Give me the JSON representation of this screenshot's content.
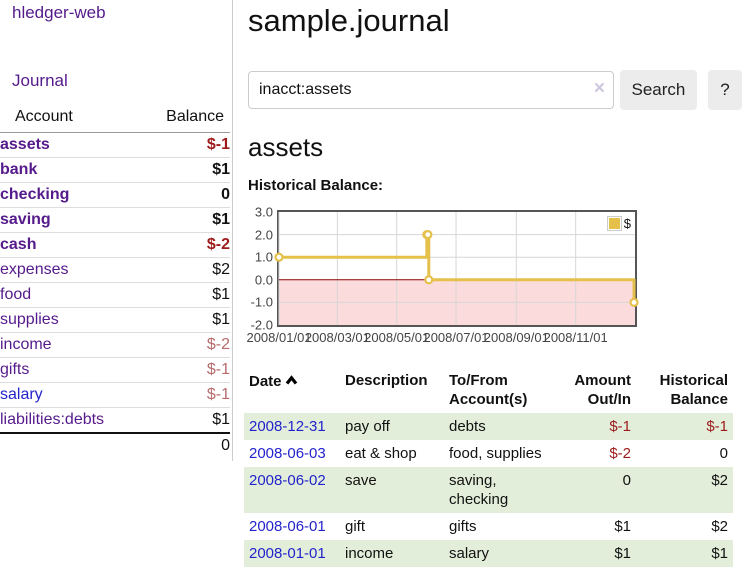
{
  "app": {
    "title": "hledger-web"
  },
  "sidebar": {
    "nav": {
      "journal": "Journal"
    },
    "accounts_table": {
      "headers": {
        "account": "Account",
        "balance": "Balance"
      },
      "rows": [
        {
          "name": "assets",
          "balance": "$-1"
        },
        {
          "name": "bank",
          "balance": "$1"
        },
        {
          "name": "checking",
          "balance": "0"
        },
        {
          "name": "saving",
          "balance": "$1"
        },
        {
          "name": "cash",
          "balance": "$-2"
        },
        {
          "name": "expenses",
          "balance": "$2"
        },
        {
          "name": "food",
          "balance": "$1"
        },
        {
          "name": "supplies",
          "balance": "$1"
        },
        {
          "name": "income",
          "balance": "$-2"
        },
        {
          "name": "gifts",
          "balance": "$-1"
        },
        {
          "name": "salary",
          "balance": "$-1"
        },
        {
          "name": "liabilities:debts",
          "balance": "$1"
        }
      ],
      "total": "0"
    }
  },
  "main": {
    "title": "sample.journal",
    "search": {
      "value": "inacct:assets",
      "clear_icon": "×",
      "button": "Search",
      "help_button": "?"
    },
    "account_heading": "assets",
    "chart_label": "Historical Balance:"
  },
  "register_table": {
    "headers": {
      "date": "Date",
      "description": "Description",
      "accounts": "To/From Account(s)",
      "amount": "Amount Out/In",
      "balance": "Historical Balance"
    },
    "rows": [
      {
        "date": "2008-12-31",
        "description": "pay off",
        "accounts": "debts",
        "amount": "$-1",
        "balance": "$-1"
      },
      {
        "date": "2008-06-03",
        "description": "eat & shop",
        "accounts": "food, supplies",
        "amount": "$-2",
        "balance": "0"
      },
      {
        "date": "2008-06-02",
        "description": "save",
        "accounts": "saving, checking",
        "amount": "0",
        "balance": "$2"
      },
      {
        "date": "2008-06-01",
        "description": "gift",
        "accounts": "gifts",
        "amount": "$1",
        "balance": "$2"
      },
      {
        "date": "2008-01-01",
        "description": "income",
        "accounts": "salary",
        "amount": "$1",
        "balance": "$1"
      }
    ]
  },
  "chart_data": {
    "type": "line",
    "title": "Historical Balance:",
    "step": true,
    "series": [
      {
        "name": "$",
        "color": "#e5c04a",
        "points": [
          [
            "2008-01-01",
            1
          ],
          [
            "2008-06-01",
            2
          ],
          [
            "2008-06-02",
            2
          ],
          [
            "2008-06-03",
            0
          ],
          [
            "2008-12-31",
            -1
          ]
        ]
      }
    ],
    "x_range": [
      "2008-01-01",
      "2009-01-01"
    ],
    "ylim": [
      -2,
      3
    ],
    "y_ticks": [
      {
        "v": 3,
        "label": "3.0"
      },
      {
        "v": 2,
        "label": "2.0"
      },
      {
        "v": 1,
        "label": "1.0"
      },
      {
        "v": 0,
        "label": "0.0"
      },
      {
        "v": -1,
        "label": "-1.0"
      },
      {
        "v": -2,
        "label": "-2.0"
      }
    ],
    "x_ticks": [
      {
        "date": "2008-01-01",
        "label": "2008/01/01"
      },
      {
        "date": "2008-03-01",
        "label": "2008/03/01"
      },
      {
        "date": "2008-05-01",
        "label": "2008/05/01"
      },
      {
        "date": "2008-07-01",
        "label": "2008/07/01"
      },
      {
        "date": "2008-09-01",
        "label": "2008/09/01"
      },
      {
        "date": "2008-11-01",
        "label": "2008/11/01"
      }
    ],
    "legend": {
      "position": "top-right",
      "label": "$"
    },
    "grid": true,
    "grid_color": "#d7d7d7",
    "negative_region_color": "#fbdbdb",
    "zero_line_color": "#8b0000"
  },
  "colors": {
    "link_purple": "#551a8b",
    "link_blue": "#2323cc",
    "negative_strong": "#9c1a1a",
    "negative_soft": "#b76b6b",
    "row_stripe_green": "#e2eeda",
    "series_gold": "#e5c04a"
  }
}
